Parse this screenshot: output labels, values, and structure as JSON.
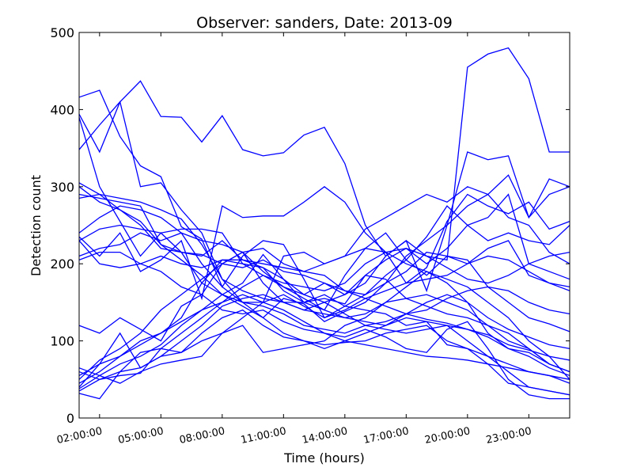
{
  "chart_data": {
    "type": "line",
    "title": "Observer: sanders, Date: 2013-09",
    "xlabel": "Time (hours)",
    "ylabel": "Detection count",
    "xlim": [
      1,
      25
    ],
    "ylim": [
      0,
      500
    ],
    "xticks": [
      {
        "value": 2,
        "label": "02:00:00"
      },
      {
        "value": 5,
        "label": "05:00:00"
      },
      {
        "value": 8,
        "label": "08:00:00"
      },
      {
        "value": 11,
        "label": "11:00:00"
      },
      {
        "value": 14,
        "label": "14:00:00"
      },
      {
        "value": 17,
        "label": "17:00:00"
      },
      {
        "value": 20,
        "label": "20:00:00"
      },
      {
        "value": 23,
        "label": "23:00:00"
      }
    ],
    "yticks": [
      0,
      100,
      200,
      300,
      400,
      500
    ],
    "grid": false,
    "line_color": "#0000ff",
    "x": [
      1,
      2,
      3,
      4,
      5,
      6,
      7,
      8,
      9,
      10,
      11,
      12,
      13,
      14,
      15,
      16,
      17,
      18,
      19,
      20,
      21,
      22,
      23,
      24,
      25
    ],
    "series": [
      {
        "values": [
          416,
          425,
          365,
          327,
          313,
          248,
          232,
          170,
          210,
          230,
          225,
          180,
          130,
          145,
          160,
          185,
          205,
          185,
          210,
          205,
          170,
          150,
          130,
          122,
          112
        ]
      },
      {
        "values": [
          394,
          345,
          410,
          437,
          391,
          390,
          358,
          392,
          348,
          340,
          344,
          367,
          377,
          330,
          250,
          210,
          230,
          210,
          205,
          455,
          472,
          480,
          440,
          345,
          345
        ]
      },
      {
        "values": [
          390,
          300,
          255,
          210,
          240,
          215,
          175,
          160,
          175,
          212,
          180,
          150,
          155,
          148,
          185,
          205,
          220,
          200,
          220,
          250,
          230,
          240,
          230,
          225,
          250
        ]
      },
      {
        "values": [
          348,
          380,
          410,
          300,
          305,
          270,
          240,
          180,
          150,
          130,
          110,
          100,
          90,
          100,
          110,
          120,
          130,
          125,
          120,
          115,
          105,
          90,
          85,
          70,
          60
        ]
      },
      {
        "values": [
          305,
          290,
          270,
          255,
          225,
          205,
          185,
          160,
          145,
          130,
          155,
          148,
          125,
          138,
          150,
          175,
          210,
          230,
          250,
          275,
          290,
          315,
          260,
          290,
          300
        ]
      },
      {
        "values": [
          290,
          285,
          280,
          275,
          225,
          215,
          212,
          200,
          195,
          205,
          190,
          185,
          175,
          165,
          155,
          145,
          135,
          128,
          123,
          115,
          108,
          95,
          88,
          80,
          50
        ]
      },
      {
        "values": [
          285,
          290,
          285,
          280,
          270,
          258,
          225,
          180,
          165,
          155,
          150,
          140,
          150,
          160,
          175,
          210,
          230,
          165,
          250,
          345,
          335,
          340,
          260,
          310,
          300
        ]
      },
      {
        "values": [
          240,
          260,
          275,
          270,
          260,
          240,
          200,
          170,
          150,
          150,
          210,
          215,
          200,
          210,
          245,
          260,
          275,
          290,
          280,
          300,
          290,
          260,
          250,
          215,
          200
        ]
      },
      {
        "values": [
          235,
          210,
          240,
          190,
          205,
          230,
          155,
          275,
          260,
          262,
          262,
          280,
          300,
          280,
          240,
          215,
          175,
          195,
          255,
          290,
          275,
          265,
          280,
          245,
          255
        ]
      },
      {
        "values": [
          230,
          245,
          250,
          245,
          240,
          245,
          245,
          240,
          200,
          195,
          165,
          150,
          140,
          185,
          220,
          240,
          205,
          235,
          275,
          250,
          260,
          290,
          200,
          190,
          180
        ]
      },
      {
        "values": [
          205,
          215,
          215,
          200,
          210,
          200,
          195,
          205,
          205,
          200,
          195,
          190,
          185,
          165,
          160,
          175,
          190,
          215,
          210,
          200,
          220,
          230,
          185,
          175,
          165
        ]
      },
      {
        "values": [
          120,
          110,
          130,
          115,
          100,
          145,
          160,
          200,
          215,
          190,
          170,
          160,
          175,
          160,
          185,
          180,
          155,
          145,
          135,
          130,
          120,
          110,
          90,
          70,
          60
        ]
      },
      {
        "values": [
          65,
          55,
          70,
          80,
          95,
          120,
          140,
          160,
          150,
          145,
          135,
          120,
          115,
          110,
          120,
          125,
          135,
          140,
          155,
          165,
          170,
          165,
          150,
          140,
          135
        ]
      },
      {
        "values": [
          60,
          50,
          60,
          65,
          80,
          100,
          120,
          145,
          155,
          160,
          150,
          140,
          135,
          130,
          125,
          120,
          135,
          150,
          160,
          150,
          130,
          115,
          105,
          95,
          90
        ]
      },
      {
        "values": [
          55,
          70,
          80,
          100,
          110,
          125,
          140,
          150,
          170,
          185,
          175,
          170,
          165,
          175,
          200,
          215,
          220,
          210,
          195,
          180,
          175,
          185,
          200,
          210,
          215
        ]
      },
      {
        "values": [
          50,
          75,
          90,
          110,
          140,
          160,
          180,
          200,
          215,
          220,
          200,
          190,
          200,
          210,
          220,
          215,
          200,
          190,
          180,
          170,
          150,
          130,
          100,
          80,
          75
        ]
      },
      {
        "values": [
          45,
          60,
          80,
          95,
          110,
          130,
          175,
          205,
          200,
          185,
          170,
          155,
          140,
          130,
          135,
          150,
          170,
          190,
          175,
          150,
          110,
          90,
          80,
          65,
          55
        ]
      },
      {
        "values": [
          40,
          70,
          110,
          65,
          80,
          85,
          100,
          110,
          120,
          85,
          90,
          95,
          100,
          120,
          130,
          150,
          155,
          160,
          150,
          140,
          120,
          100,
          90,
          70,
          60
        ]
      },
      {
        "values": [
          38,
          55,
          45,
          60,
          70,
          75,
          80,
          110,
          130,
          150,
          160,
          145,
          130,
          140,
          155,
          165,
          175,
          180,
          185,
          200,
          210,
          205,
          190,
          175,
          170
        ]
      },
      {
        "values": [
          35,
          50,
          55,
          58,
          90,
          110,
          130,
          150,
          160,
          150,
          140,
          125,
          110,
          100,
          95,
          90,
          85,
          80,
          78,
          75,
          70,
          65,
          60,
          55,
          50
        ]
      },
      {
        "values": [
          32,
          25,
          60,
          85,
          90,
          85,
          110,
          130,
          140,
          120,
          105,
          100,
          95,
          98,
          100,
          110,
          115,
          120,
          100,
          90,
          80,
          70,
          60,
          55,
          45
        ]
      },
      {
        "values": [
          230,
          200,
          195,
          200,
          190,
          170,
          160,
          140,
          135,
          140,
          125,
          115,
          110,
          105,
          115,
          105,
          90,
          85,
          115,
          125,
          90,
          50,
          30,
          25,
          25
        ]
      },
      {
        "values": [
          210,
          220,
          225,
          240,
          230,
          240,
          230,
          225,
          215,
          175,
          150,
          150,
          160,
          145,
          140,
          135,
          120,
          125,
          95,
          90,
          70,
          45,
          40,
          35,
          30
        ]
      },
      {
        "values": [
          300,
          280,
          270,
          250,
          220,
          215,
          210,
          230,
          205,
          195,
          180,
          160,
          150,
          135,
          120,
          115,
          110,
          115,
          120,
          100,
          80,
          60,
          40,
          35,
          30
        ]
      }
    ]
  }
}
